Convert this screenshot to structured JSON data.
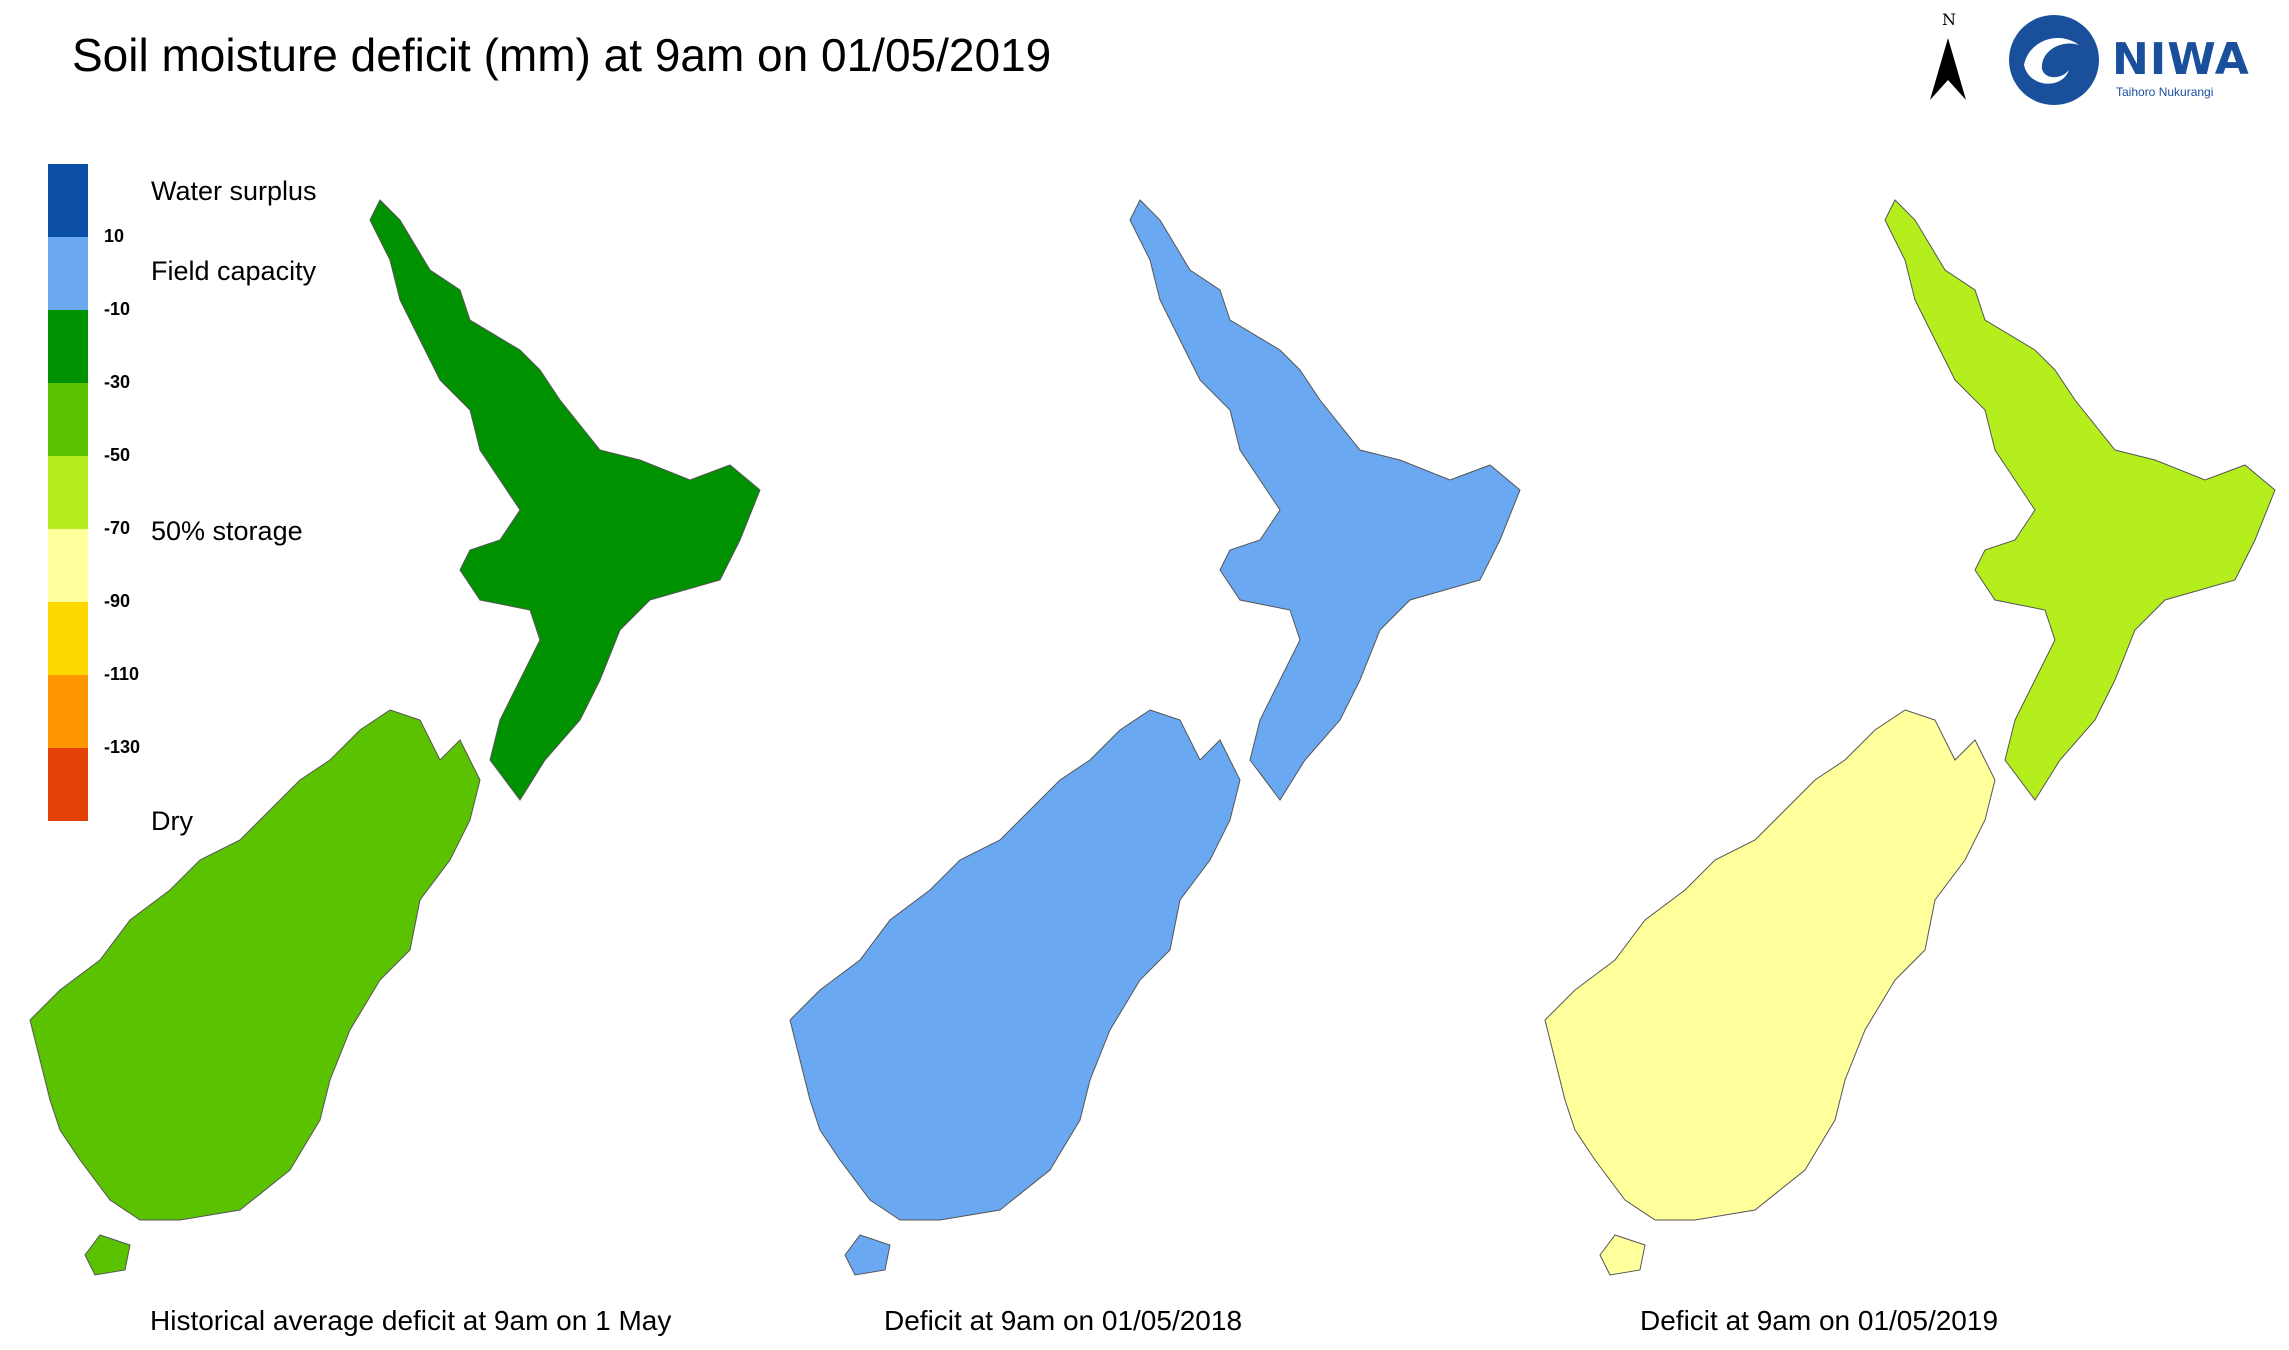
{
  "title": "Soil moisture deficit (mm) at  9am on 01/05/2019",
  "legend": {
    "colors": [
      "#0a4ea5",
      "#6aa8f2",
      "#009100",
      "#5ac200",
      "#b4ee1d",
      "#ffff9b",
      "#ffd700",
      "#ff9500",
      "#e34105"
    ],
    "ticks": [
      "10",
      "-10",
      "-30",
      "-50",
      "-70",
      "-90",
      "-110",
      "-130"
    ],
    "labels": {
      "surplus": "Water surplus",
      "field": "Field capacity",
      "storage": "50% storage",
      "dry": "Dry"
    }
  },
  "maps": [
    {
      "caption": "Historical average deficit at  9am on 1 May",
      "colors": {
        "north": "#009100",
        "south": "#5ac200",
        "core": "#ffd700",
        "west": "#6aa8f2"
      }
    },
    {
      "caption": "Deficit at  9am on 01/05/2018",
      "colors": {
        "north": "#6aa8f2",
        "south": "#6aa8f2",
        "core": "#0a4ea5",
        "west": "#6aa8f2"
      }
    },
    {
      "caption": "Deficit at  9am on 01/05/2019",
      "colors": {
        "north": "#b4ee1d",
        "south": "#ffff9b",
        "core": "#ffd700",
        "west": "#0a4ea5"
      }
    }
  ],
  "north_arrow": {
    "label": "N"
  },
  "logo": {
    "name": "NIWA",
    "subtitle": "Taihoro Nukurangi"
  }
}
